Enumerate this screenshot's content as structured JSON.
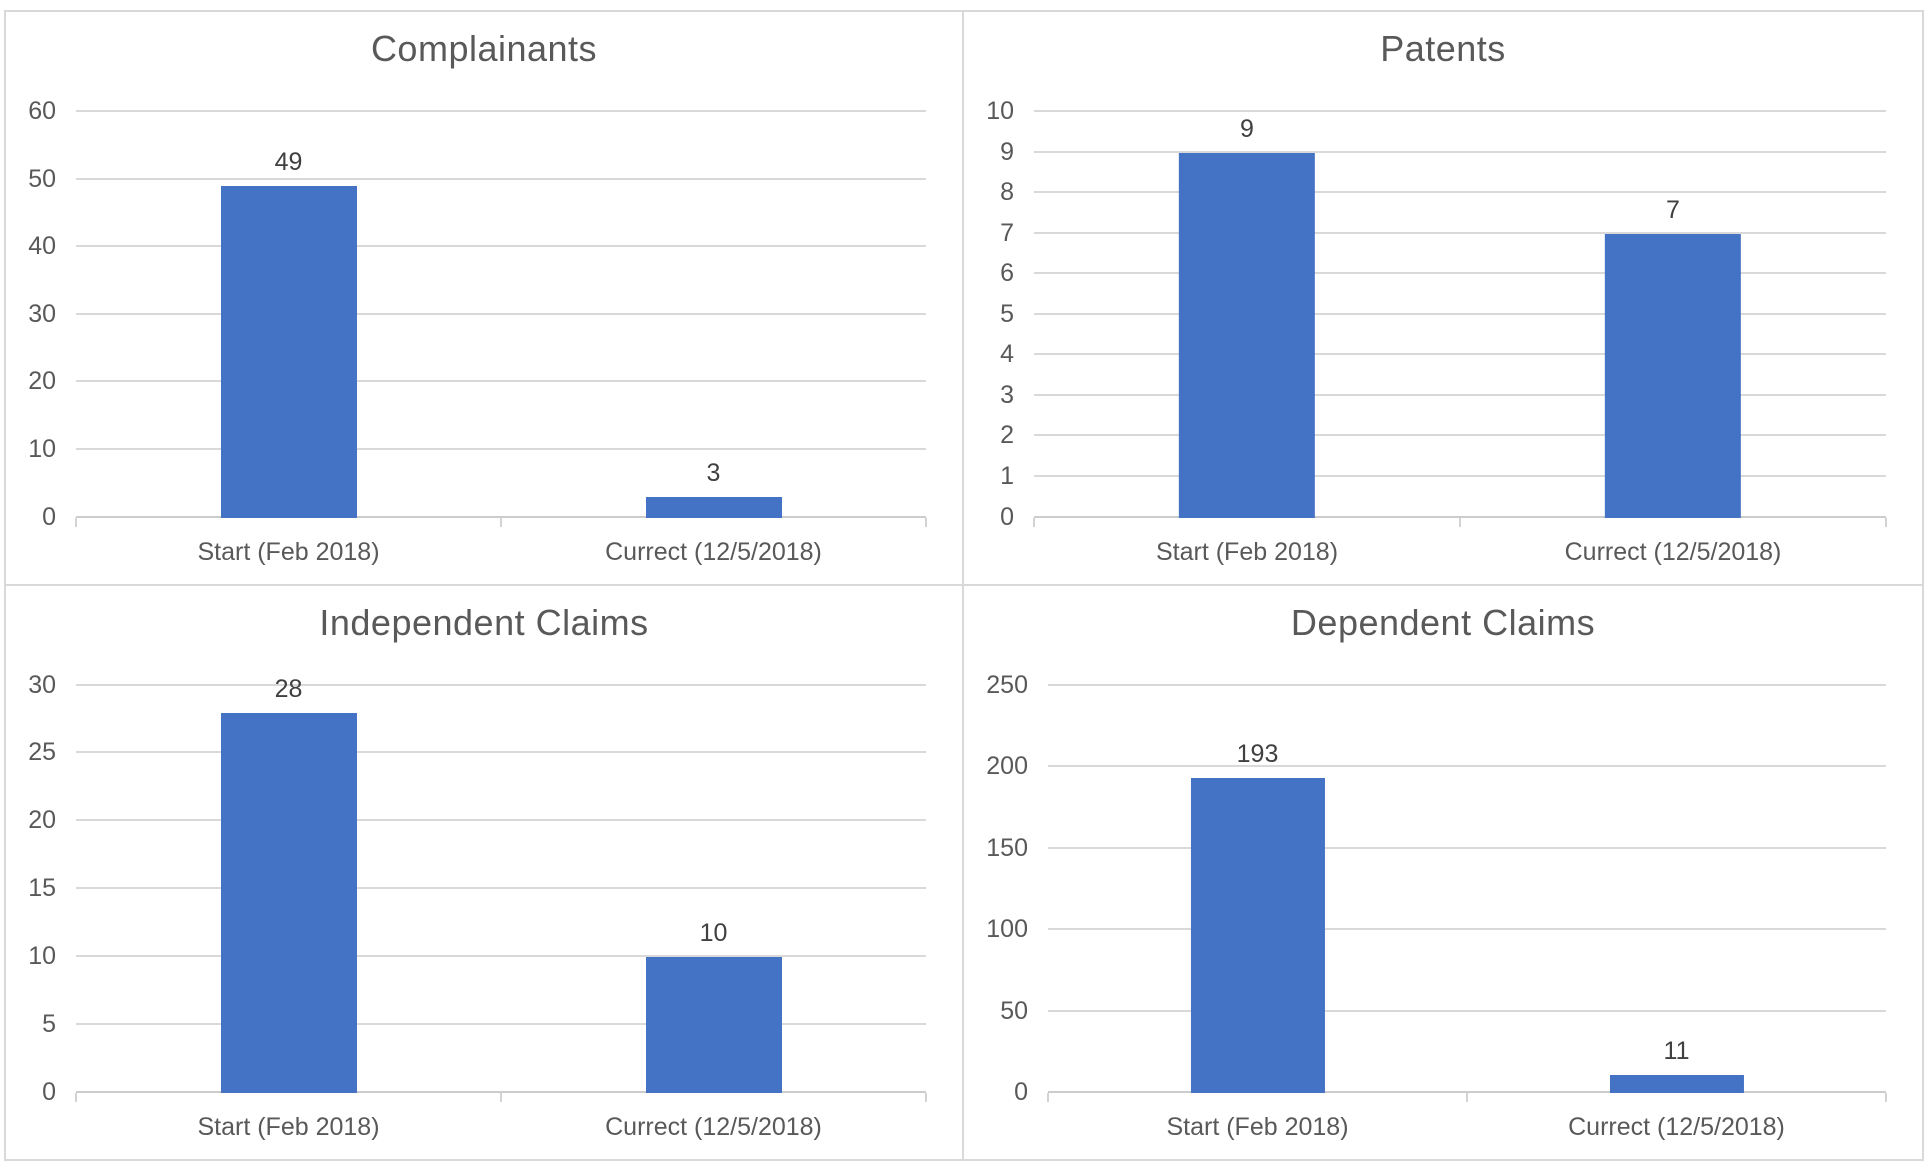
{
  "style": {
    "bar_color": "#4472C4",
    "gridline_color": "#D9D9D9",
    "axis_color": "#CCCCCC",
    "title_color": "#595959",
    "tick_label_color": "#595959",
    "data_label_color": "#404040",
    "background": "#FFFFFF"
  },
  "chart_data": [
    {
      "type": "bar",
      "title": "Complainants",
      "categories": [
        "Start (Feb 2018)",
        "Currect (12/5/2018)"
      ],
      "values": [
        49,
        3
      ],
      "data_labels": [
        "49",
        "3"
      ],
      "ylim": [
        0,
        60
      ],
      "ytick_step": 10,
      "yticks": [
        0,
        10,
        20,
        30,
        40,
        50,
        60
      ],
      "grid": true,
      "legend": "none"
    },
    {
      "type": "bar",
      "title": "Patents",
      "categories": [
        "Start (Feb 2018)",
        "Currect (12/5/2018)"
      ],
      "values": [
        9,
        7
      ],
      "data_labels": [
        "9",
        "7"
      ],
      "ylim": [
        0,
        10
      ],
      "ytick_step": 1,
      "yticks": [
        0,
        1,
        2,
        3,
        4,
        5,
        6,
        7,
        8,
        9,
        10
      ],
      "grid": true,
      "legend": "none"
    },
    {
      "type": "bar",
      "title": "Independent Claims",
      "categories": [
        "Start (Feb 2018)",
        "Currect (12/5/2018)"
      ],
      "values": [
        28,
        10
      ],
      "data_labels": [
        "28",
        "10"
      ],
      "ylim": [
        0,
        30
      ],
      "ytick_step": 5,
      "yticks": [
        0,
        5,
        10,
        15,
        20,
        25,
        30
      ],
      "grid": true,
      "legend": "none"
    },
    {
      "type": "bar",
      "title": "Dependent Claims",
      "categories": [
        "Start (Feb 2018)",
        "Currect (12/5/2018)"
      ],
      "values": [
        193,
        11
      ],
      "data_labels": [
        "193",
        "11"
      ],
      "ylim": [
        0,
        250
      ],
      "ytick_step": 50,
      "yticks": [
        0,
        50,
        100,
        150,
        200,
        250
      ],
      "grid": true,
      "legend": "none"
    }
  ]
}
